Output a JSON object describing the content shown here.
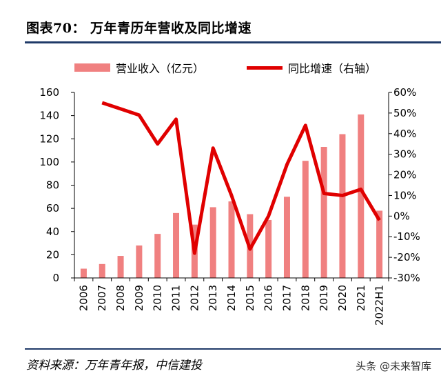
{
  "header": {
    "title": "图表70：  万年青历年营收及同比增速"
  },
  "footer": {
    "source": "资料来源：万年青年报，中信建投",
    "watermark": "头条 @未来智库"
  },
  "chart_data": {
    "type": "bar",
    "title": "",
    "categories": [
      "2006",
      "2007",
      "2008",
      "2009",
      "2010",
      "2011",
      "2012",
      "2013",
      "2014",
      "2015",
      "2016",
      "2017",
      "2018",
      "2019",
      "2020",
      "2021",
      "2022H1"
    ],
    "series": [
      {
        "name": "营业收入（亿元）",
        "type": "bar",
        "axis": "left",
        "color": "#f08080",
        "values": [
          8,
          12,
          19,
          28,
          38,
          56,
          46,
          61,
          66,
          55,
          50,
          70,
          101,
          113,
          124,
          141,
          58
        ]
      },
      {
        "name": "同比增速（右轴）",
        "type": "line",
        "axis": "right",
        "color": "#e00000",
        "values": [
          null,
          55,
          52,
          49,
          35,
          47,
          -18,
          33,
          10,
          -16,
          0,
          25,
          44,
          11,
          10,
          13,
          -2
        ]
      }
    ],
    "left_axis": {
      "min": 0,
      "max": 160,
      "ticks": [
        0,
        20,
        40,
        60,
        80,
        100,
        120,
        140,
        160
      ]
    },
    "right_axis": {
      "min": -30,
      "max": 60,
      "ticks": [
        "-30%",
        "-20%",
        "-10%",
        "0%",
        "10%",
        "20%",
        "30%",
        "40%",
        "50%",
        "60%"
      ]
    },
    "legend": "top",
    "grid": false
  }
}
